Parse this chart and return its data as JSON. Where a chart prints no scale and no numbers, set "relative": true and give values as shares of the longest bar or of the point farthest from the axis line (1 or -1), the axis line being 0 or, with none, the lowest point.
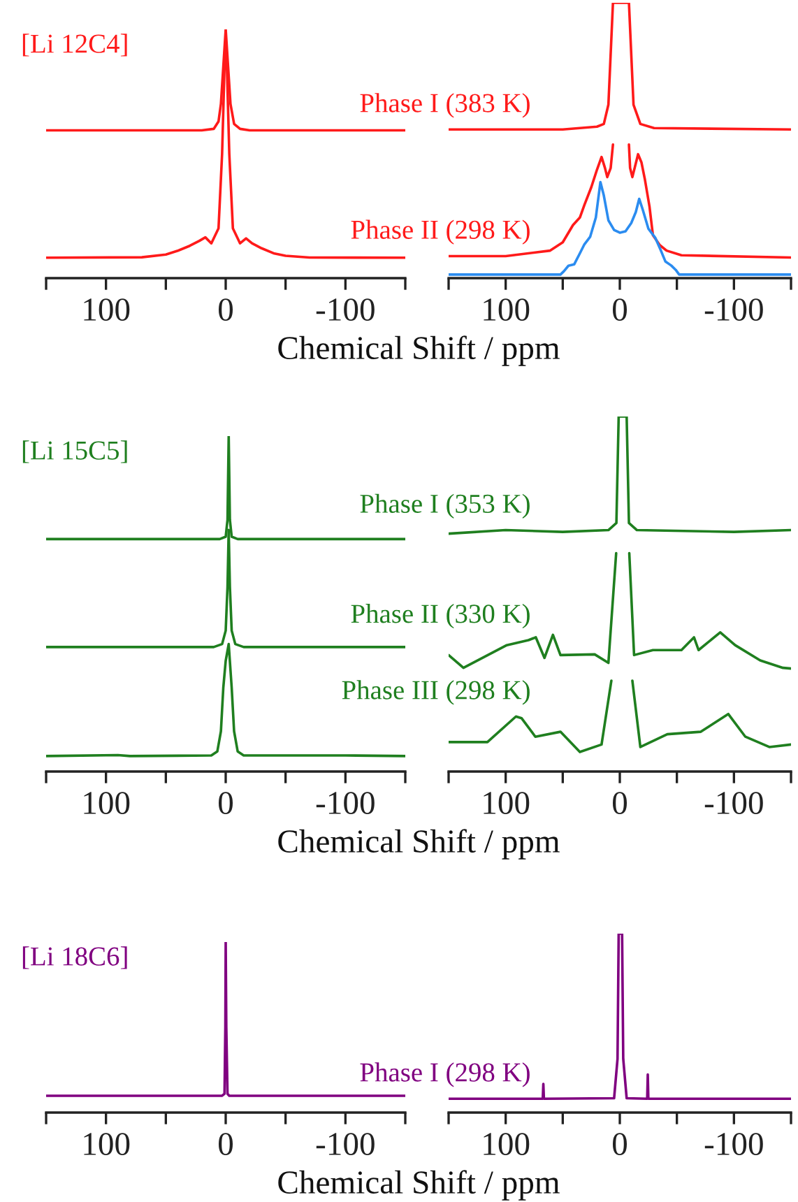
{
  "chart_data": [
    {
      "type": "line",
      "relative": true,
      "title": "[Li 12C4]",
      "xlabel": "Chemical Shift / ppm",
      "xlim": [
        150,
        -150
      ],
      "xticks": [
        {
          "value": 150,
          "label": null
        },
        100,
        {
          "value": 50,
          "label": null
        },
        0,
        {
          "value": -50,
          "label": null
        },
        -100,
        {
          "value": -150,
          "label": null
        }
      ],
      "tick_labels": "x",
      "series": [
        {
          "color": "#ff1a1a",
          "x": [
            150,
            20,
            10,
            6,
            4,
            2,
            0,
            -2,
            -4,
            -7,
            -12,
            -20,
            -150
          ],
          "values": [
            0.594,
            0.594,
            0.6,
            0.63,
            0.7,
            0.85,
            1.0,
            0.85,
            0.7,
            0.62,
            0.6,
            0.594,
            0.594
          ]
        },
        {
          "color": "#ff1a1a",
          "x": [
            150,
            70,
            50,
            40,
            30,
            22,
            17,
            12,
            6,
            3,
            1,
            0,
            -1,
            -3,
            -6,
            -12,
            -17,
            -22,
            -30,
            -40,
            -50,
            -70,
            -150
          ],
          "values": [
            0.082,
            0.084,
            0.095,
            0.11,
            0.13,
            0.15,
            0.164,
            0.14,
            0.2,
            0.5,
            0.85,
            0.922,
            0.85,
            0.5,
            0.2,
            0.14,
            0.16,
            0.14,
            0.12,
            0.1,
            0.09,
            0.083,
            0.082
          ]
        }
      ]
    },
    {
      "type": "line",
      "relative": true,
      "xlim": [
        150,
        -150
      ],
      "xticks": [
        {
          "value": 150,
          "label": null
        },
        100,
        {
          "value": 50,
          "label": null
        },
        0,
        {
          "value": -50,
          "label": null
        },
        -100,
        {
          "value": -150,
          "label": null
        }
      ],
      "tick_labels": "x",
      "series": [
        {
          "name": "Phase I (383 K)",
          "color": "#ff1a1a",
          "x": [
            150,
            50,
            20,
            14,
            10,
            6,
            -8,
            -12,
            -18,
            -30,
            -150
          ],
          "values": [
            0.54,
            0.54,
            0.55,
            0.56,
            0.63,
            1.0,
            1.0,
            0.63,
            0.56,
            0.545,
            0.54
          ]
        },
        {
          "name": "Phase II (298 K)",
          "color": "#ff1a1a",
          "x": [
            150,
            100,
            61,
            50,
            41,
            35,
            31,
            25,
            20,
            16,
            13,
            11,
            8,
            6,
            -1,
            -8,
            -9,
            -11,
            -13,
            -16,
            -19,
            -22,
            -26,
            -29,
            -35,
            -41,
            -54,
            -150
          ],
          "values": [
            0.08,
            0.08,
            0.1,
            0.13,
            0.193,
            0.22,
            0.266,
            0.33,
            0.394,
            0.44,
            0.4,
            0.367,
            0.4,
            0.485,
            null,
            0.485,
            0.4,
            0.367,
            0.4,
            0.45,
            0.42,
            0.358,
            0.26,
            0.156,
            0.12,
            0.1,
            0.083,
            0.075
          ]
        },
        {
          "color": "#2b8cf0",
          "x": [
            150,
            52,
            49,
            45,
            40,
            35,
            31,
            26,
            21,
            17,
            14,
            10,
            5,
            0,
            -5,
            -10,
            -14,
            -17,
            -20,
            -25,
            -31,
            -36,
            -40,
            -45,
            -49,
            -52,
            -150
          ],
          "values": [
            0.013,
            0.013,
            0.025,
            0.045,
            0.05,
            0.09,
            0.123,
            0.15,
            0.22,
            0.349,
            0.3,
            0.21,
            0.175,
            0.165,
            0.17,
            0.2,
            0.24,
            0.288,
            0.25,
            0.18,
            0.147,
            0.1,
            0.06,
            0.046,
            0.03,
            0.013,
            0.013
          ]
        }
      ]
    },
    {
      "type": "line",
      "relative": true,
      "title": "[Li 15C5]",
      "xlabel": "Chemical Shift / ppm",
      "xlim": [
        150,
        -150
      ],
      "xticks": [
        {
          "value": 150,
          "label": null
        },
        100,
        {
          "value": 50,
          "label": null
        },
        0,
        {
          "value": -50,
          "label": null
        },
        -100,
        {
          "value": -150,
          "label": null
        }
      ],
      "tick_labels": "x",
      "series": [
        {
          "color": "#1f7f1f",
          "x": [
            150,
            5,
            0,
            -1.5,
            -2.5,
            -3.5,
            -5,
            -10,
            -150
          ],
          "values": [
            0.693,
            0.693,
            0.7,
            0.75,
            1.0,
            0.75,
            0.7,
            0.693,
            0.693
          ]
        },
        {
          "color": "#1f7f1f",
          "x": [
            150,
            10,
            3,
            0,
            -1.5,
            -2.5,
            -3.5,
            -5,
            -8,
            -15,
            -150
          ],
          "values": [
            0.371,
            0.371,
            0.38,
            0.42,
            0.55,
            0.72,
            0.55,
            0.42,
            0.38,
            0.371,
            0.371
          ]
        },
        {
          "color": "#1f7f1f",
          "x": [
            150,
            90,
            80,
            12,
            7,
            4,
            2,
            0,
            -2.5,
            -5,
            -7,
            -10,
            -15,
            -100,
            -150
          ],
          "values": [
            0.046,
            0.049,
            0.046,
            0.048,
            0.06,
            0.12,
            0.25,
            0.33,
            0.38,
            0.25,
            0.12,
            0.06,
            0.048,
            0.048,
            0.046
          ]
        }
      ]
    },
    {
      "type": "line",
      "relative": true,
      "xlim": [
        150,
        -150
      ],
      "xticks": [
        {
          "value": 150,
          "label": null
        },
        100,
        {
          "value": 50,
          "label": null
        },
        0,
        {
          "value": -50,
          "label": null
        },
        -100,
        {
          "value": -150,
          "label": null
        }
      ],
      "tick_labels": "x",
      "series": [
        {
          "name": "Phase I (353 K)",
          "color": "#1f7f1f",
          "x": [
            150,
            100,
            50,
            10,
            3,
            1,
            -6,
            -8,
            -15,
            -100,
            -150
          ],
          "values": [
            0.67,
            0.68,
            0.675,
            0.68,
            0.7,
            1.0,
            1.0,
            0.7,
            0.68,
            0.675,
            0.68
          ]
        },
        {
          "name": "Phase II (330 K)",
          "color": "#1f7f1f",
          "x": [
            150,
            137,
            99,
            80,
            73.6,
            66,
            58.6,
            52,
            22,
            10,
            3.2,
            -1,
            -8.3,
            -12.5,
            -29,
            -54,
            -65,
            -69,
            -88,
            -101,
            -123,
            -143,
            -150
          ],
          "values": [
            0.328,
            0.292,
            0.356,
            0.37,
            0.378,
            0.32,
            0.385,
            0.328,
            0.33,
            0.306,
            0.615,
            null,
            0.615,
            0.328,
            0.342,
            0.342,
            0.378,
            0.342,
            0.392,
            0.356,
            0.313,
            0.292,
            0.29
          ]
        },
        {
          "name": "Phase III (298 K)",
          "color": "#1f7f1f",
          "x": [
            150,
            116,
            91,
            86,
            74,
            52,
            35,
            16,
            7.4,
            -1,
            -11,
            -18,
            -41.6,
            -71,
            -95,
            -110,
            -131,
            -150
          ],
          "values": [
            0.083,
            0.083,
            0.155,
            0.15,
            0.098,
            0.112,
            0.055,
            0.076,
            0.256,
            null,
            0.256,
            0.069,
            0.105,
            0.112,
            0.162,
            0.098,
            0.069,
            0.076
          ]
        }
      ]
    },
    {
      "type": "line",
      "relative": true,
      "title": "[Li 18C6]",
      "xlabel": "Chemical Shift / ppm",
      "xlim": [
        150,
        -150
      ],
      "xticks": [
        {
          "value": 150,
          "label": null
        },
        100,
        {
          "value": 50,
          "label": null
        },
        0,
        {
          "value": -50,
          "label": null
        },
        -100,
        {
          "value": -150,
          "label": null
        }
      ],
      "tick_labels": "x",
      "series": [
        {
          "color": "#800080",
          "x": [
            150,
            3,
            1,
            0.3,
            0,
            -0.5,
            -1.5,
            -3,
            -150
          ],
          "values": [
            0.0985,
            0.0985,
            0.11,
            0.5,
            1.0,
            0.5,
            0.11,
            0.0985,
            0.0985
          ]
        }
      ]
    },
    {
      "type": "line",
      "relative": true,
      "xlim": [
        150,
        -150
      ],
      "xticks": [
        {
          "value": 150,
          "label": null
        },
        100,
        {
          "value": 50,
          "label": null
        },
        0,
        {
          "value": -50,
          "label": null
        },
        -100,
        {
          "value": -150,
          "label": null
        }
      ],
      "tick_labels": "x",
      "series": [
        {
          "name": "Phase I (298 K)",
          "color": "#800080",
          "x": [
            150,
            67.5,
            67,
            66.5,
            5,
            2,
            1,
            -2,
            -3,
            -6,
            -24,
            -24.5,
            -25,
            -150
          ],
          "values": [
            0.077,
            0.077,
            0.16,
            0.077,
            0.08,
            0.3,
            1.0,
            1.0,
            0.3,
            0.08,
            0.077,
            0.213,
            0.077,
            0.077
          ]
        }
      ]
    }
  ]
}
